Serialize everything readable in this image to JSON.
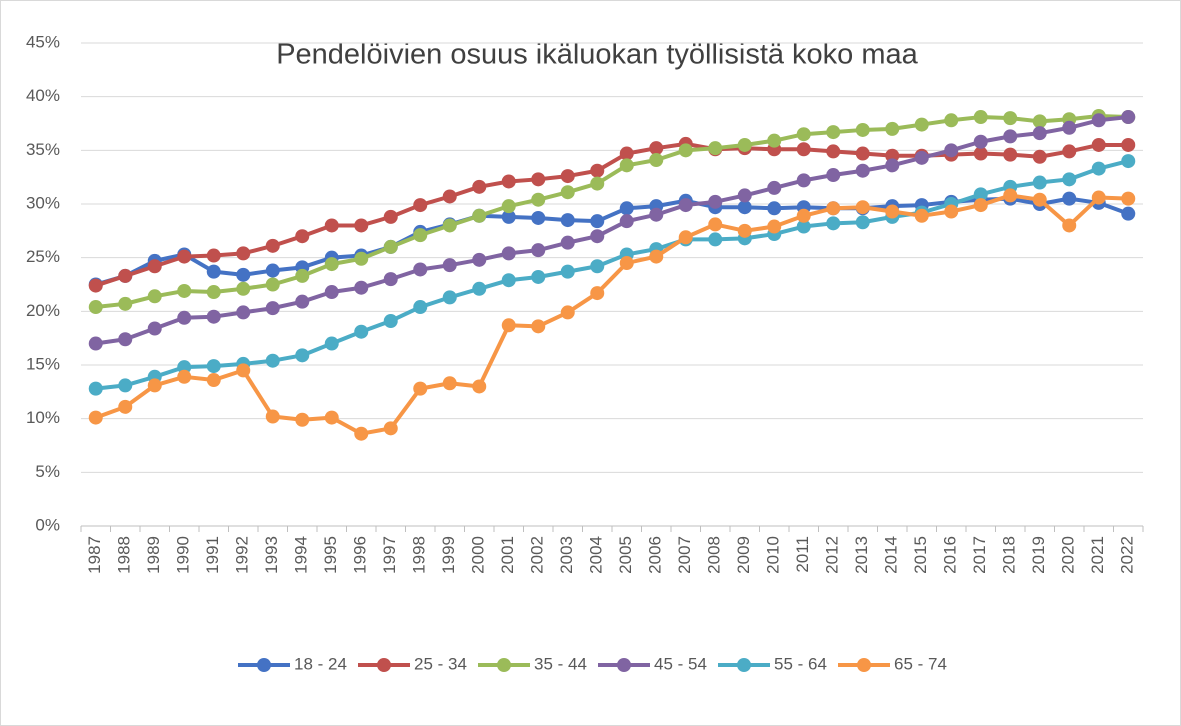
{
  "chart_data": {
    "type": "line",
    "title": "Pendelöivien osuus ikäluokan työllisistä koko maa",
    "categories": [
      "1987",
      "1988",
      "1989",
      "1990",
      "1991",
      "1992",
      "1993",
      "1994",
      "1995",
      "1996",
      "1997",
      "1998",
      "1999",
      "2000",
      "2001",
      "2002",
      "2003",
      "2004",
      "2005",
      "2006",
      "2007",
      "2008",
      "2009",
      "2010",
      "2011",
      "2012",
      "2013",
      "2014",
      "2015",
      "2016",
      "2017",
      "2018",
      "2019",
      "2020",
      "2021",
      "2022"
    ],
    "series": [
      {
        "name": "18 - 24",
        "color": "#4472c4",
        "values": [
          22.5,
          23.3,
          24.7,
          25.3,
          23.7,
          23.4,
          23.8,
          24.1,
          25.0,
          25.2,
          26.0,
          27.4,
          28.1,
          28.9,
          28.8,
          28.7,
          28.5,
          28.4,
          29.6,
          29.8,
          30.3,
          29.7,
          29.7,
          29.6,
          29.7,
          29.6,
          29.6,
          29.8,
          29.9,
          30.2,
          30.4,
          30.5,
          30.0,
          30.5,
          30.1,
          29.1
        ]
      },
      {
        "name": "25 - 34",
        "color": "#c0504d",
        "values": [
          22.4,
          23.3,
          24.2,
          25.1,
          25.2,
          25.4,
          26.1,
          27.0,
          28.0,
          28.0,
          28.8,
          29.9,
          30.7,
          31.6,
          32.1,
          32.3,
          32.6,
          33.1,
          34.7,
          35.2,
          35.6,
          35.1,
          35.2,
          35.1,
          35.1,
          34.9,
          34.7,
          34.5,
          34.5,
          34.6,
          34.7,
          34.6,
          34.4,
          34.9,
          35.5,
          35.5
        ]
      },
      {
        "name": "35 - 44",
        "color": "#9bbb59",
        "values": [
          20.4,
          20.7,
          21.4,
          21.9,
          21.8,
          22.1,
          22.5,
          23.3,
          24.4,
          24.9,
          26.0,
          27.1,
          28.0,
          28.9,
          29.8,
          30.4,
          31.1,
          31.9,
          33.6,
          34.1,
          35.0,
          35.2,
          35.5,
          35.9,
          36.5,
          36.7,
          36.9,
          37.0,
          37.4,
          37.8,
          38.1,
          38.0,
          37.7,
          37.9,
          38.2,
          38.1
        ]
      },
      {
        "name": "45 - 54",
        "color": "#8064a2",
        "values": [
          17.0,
          17.4,
          18.4,
          19.4,
          19.5,
          19.9,
          20.3,
          20.9,
          21.8,
          22.2,
          23.0,
          23.9,
          24.3,
          24.8,
          25.4,
          25.7,
          26.4,
          27.0,
          28.4,
          29.0,
          29.9,
          30.2,
          30.8,
          31.5,
          32.2,
          32.7,
          33.1,
          33.6,
          34.3,
          35.0,
          35.8,
          36.3,
          36.6,
          37.1,
          37.8,
          38.1
        ]
      },
      {
        "name": "55 - 64",
        "color": "#4bacc6",
        "values": [
          12.8,
          13.1,
          13.9,
          14.8,
          14.9,
          15.1,
          15.4,
          15.9,
          17.0,
          18.1,
          19.1,
          20.4,
          21.3,
          22.1,
          22.9,
          23.2,
          23.7,
          24.2,
          25.3,
          25.8,
          26.7,
          26.7,
          26.8,
          27.2,
          27.9,
          28.2,
          28.3,
          28.8,
          29.2,
          30.0,
          30.9,
          31.6,
          32.0,
          32.3,
          33.3,
          34.0
        ]
      },
      {
        "name": "65 - 74",
        "color": "#f79646",
        "values": [
          10.1,
          11.1,
          13.1,
          13.9,
          13.6,
          14.5,
          10.2,
          9.9,
          10.1,
          8.6,
          9.1,
          12.8,
          13.3,
          13.0,
          18.7,
          18.6,
          19.9,
          21.7,
          24.5,
          25.1,
          26.9,
          28.1,
          27.5,
          27.9,
          28.9,
          29.6,
          29.7,
          29.3,
          28.9,
          29.3,
          29.9,
          30.8,
          30.4,
          28.0,
          30.6,
          30.5
        ]
      }
    ],
    "ylim": [
      0,
      45
    ],
    "yticks": [
      {
        "value": 0,
        "label": "0%"
      },
      {
        "value": 5,
        "label": "5%"
      },
      {
        "value": 10,
        "label": "10%"
      },
      {
        "value": 15,
        "label": "15%"
      },
      {
        "value": 20,
        "label": "20%"
      },
      {
        "value": 25,
        "label": "25%"
      },
      {
        "value": 30,
        "label": "30%"
      },
      {
        "value": 35,
        "label": "35%"
      },
      {
        "value": 40,
        "label": "40%"
      },
      {
        "value": 45,
        "label": "45%"
      }
    ],
    "grid": true,
    "legend": "bottom"
  }
}
